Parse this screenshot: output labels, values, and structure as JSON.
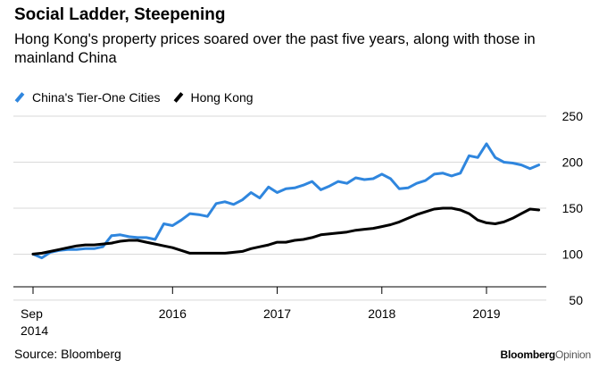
{
  "title": "Social Ladder, Steepening",
  "subtitle": "Hong Kong's property prices soared over the past five years, along with those in mainland China",
  "source": "Source: Bloomberg",
  "brand": {
    "part1": "Bloomberg",
    "part2": "Opinion"
  },
  "colors": {
    "china": "#2f86de",
    "hongkong": "#000000",
    "grid": "#d9d9d9"
  },
  "chart_data": {
    "type": "line",
    "xlabel": "",
    "ylabel": "",
    "ylim": [
      50,
      250
    ],
    "yticks": [
      50,
      100,
      150,
      200,
      250
    ],
    "xticks": [
      {
        "label": "Sep",
        "sub": "2014",
        "x": "2014-09"
      },
      {
        "label": "2016",
        "sub": "",
        "x": "2016-01"
      },
      {
        "label": "2017",
        "sub": "",
        "x": "2017-01"
      },
      {
        "label": "2018",
        "sub": "",
        "x": "2018-01"
      },
      {
        "label": "2019",
        "sub": "",
        "x": "2019-01"
      }
    ],
    "xlim": [
      "2014-09",
      "2019-07"
    ],
    "grid": true,
    "legend_position": "top-left",
    "series": [
      {
        "name": "China's Tier-One Cities",
        "color": "#2f86de",
        "points": [
          [
            "2014-09",
            100
          ],
          [
            "2014-10",
            96
          ],
          [
            "2014-11",
            102
          ],
          [
            "2014-12",
            104
          ],
          [
            "2015-01",
            105
          ],
          [
            "2015-02",
            105
          ],
          [
            "2015-03",
            106
          ],
          [
            "2015-04",
            106
          ],
          [
            "2015-05",
            108
          ],
          [
            "2015-06",
            120
          ],
          [
            "2015-07",
            121
          ],
          [
            "2015-08",
            119
          ],
          [
            "2015-09",
            118
          ],
          [
            "2015-10",
            118
          ],
          [
            "2015-11",
            116
          ],
          [
            "2015-12",
            133
          ],
          [
            "2016-01",
            131
          ],
          [
            "2016-02",
            137
          ],
          [
            "2016-03",
            144
          ],
          [
            "2016-04",
            143
          ],
          [
            "2016-05",
            141
          ],
          [
            "2016-06",
            155
          ],
          [
            "2016-07",
            157
          ],
          [
            "2016-08",
            154
          ],
          [
            "2016-09",
            159
          ],
          [
            "2016-10",
            167
          ],
          [
            "2016-11",
            161
          ],
          [
            "2016-12",
            173
          ],
          [
            "2017-01",
            167
          ],
          [
            "2017-02",
            171
          ],
          [
            "2017-03",
            172
          ],
          [
            "2017-04",
            175
          ],
          [
            "2017-05",
            179
          ],
          [
            "2017-06",
            170
          ],
          [
            "2017-07",
            174
          ],
          [
            "2017-08",
            179
          ],
          [
            "2017-09",
            177
          ],
          [
            "2017-10",
            183
          ],
          [
            "2017-11",
            181
          ],
          [
            "2017-12",
            182
          ],
          [
            "2018-01",
            187
          ],
          [
            "2018-02",
            182
          ],
          [
            "2018-03",
            171
          ],
          [
            "2018-04",
            172
          ],
          [
            "2018-05",
            177
          ],
          [
            "2018-06",
            180
          ],
          [
            "2018-07",
            187
          ],
          [
            "2018-08",
            188
          ],
          [
            "2018-09",
            185
          ],
          [
            "2018-10",
            188
          ],
          [
            "2018-11",
            207
          ],
          [
            "2018-12",
            205
          ],
          [
            "2019-01",
            220
          ],
          [
            "2019-02",
            205
          ],
          [
            "2019-03",
            200
          ],
          [
            "2019-04",
            199
          ],
          [
            "2019-05",
            197
          ],
          [
            "2019-06",
            193
          ],
          [
            "2019-07",
            197
          ]
        ]
      },
      {
        "name": "Hong Kong",
        "color": "#000000",
        "points": [
          [
            "2014-09",
            100
          ],
          [
            "2014-10",
            101
          ],
          [
            "2014-11",
            103
          ],
          [
            "2014-12",
            105
          ],
          [
            "2015-01",
            107
          ],
          [
            "2015-02",
            109
          ],
          [
            "2015-03",
            110
          ],
          [
            "2015-04",
            110
          ],
          [
            "2015-05",
            111
          ],
          [
            "2015-06",
            112
          ],
          [
            "2015-07",
            114
          ],
          [
            "2015-08",
            115
          ],
          [
            "2015-09",
            115
          ],
          [
            "2015-10",
            113
          ],
          [
            "2015-11",
            111
          ],
          [
            "2015-12",
            109
          ],
          [
            "2016-01",
            107
          ],
          [
            "2016-02",
            104
          ],
          [
            "2016-03",
            101
          ],
          [
            "2016-04",
            101
          ],
          [
            "2016-05",
            101
          ],
          [
            "2016-06",
            101
          ],
          [
            "2016-07",
            101
          ],
          [
            "2016-08",
            102
          ],
          [
            "2016-09",
            103
          ],
          [
            "2016-10",
            106
          ],
          [
            "2016-11",
            108
          ],
          [
            "2016-12",
            110
          ],
          [
            "2017-01",
            113
          ],
          [
            "2017-02",
            113
          ],
          [
            "2017-03",
            115
          ],
          [
            "2017-04",
            116
          ],
          [
            "2017-05",
            118
          ],
          [
            "2017-06",
            121
          ],
          [
            "2017-07",
            122
          ],
          [
            "2017-08",
            123
          ],
          [
            "2017-09",
            124
          ],
          [
            "2017-10",
            126
          ],
          [
            "2017-11",
            127
          ],
          [
            "2017-12",
            128
          ],
          [
            "2018-01",
            130
          ],
          [
            "2018-02",
            132
          ],
          [
            "2018-03",
            135
          ],
          [
            "2018-04",
            139
          ],
          [
            "2018-05",
            143
          ],
          [
            "2018-06",
            146
          ],
          [
            "2018-07",
            149
          ],
          [
            "2018-08",
            150
          ],
          [
            "2018-09",
            150
          ],
          [
            "2018-10",
            148
          ],
          [
            "2018-11",
            144
          ],
          [
            "2018-12",
            137
          ],
          [
            "2019-01",
            134
          ],
          [
            "2019-02",
            133
          ],
          [
            "2019-03",
            135
          ],
          [
            "2019-04",
            139
          ],
          [
            "2019-05",
            144
          ],
          [
            "2019-06",
            149
          ],
          [
            "2019-07",
            148
          ]
        ]
      }
    ]
  }
}
